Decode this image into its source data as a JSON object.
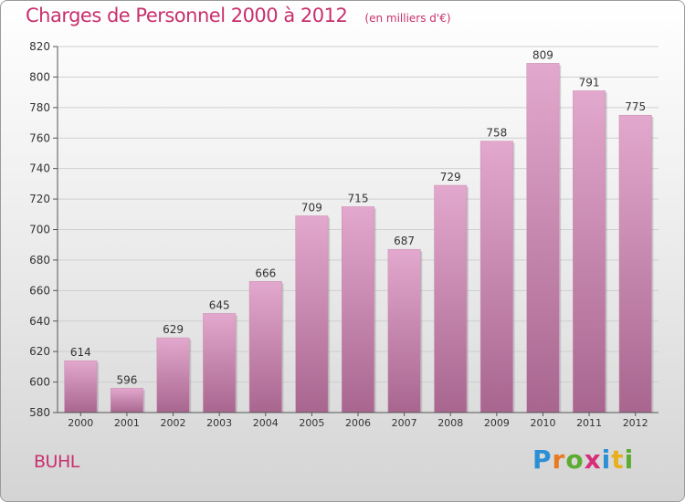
{
  "title": "Charges de Personnel 2000 à 2012",
  "subtitle": "(en milliers d'€)",
  "commune": "BUHL",
  "brand": {
    "letters": [
      "P",
      "r",
      "o",
      "x",
      "i",
      "t",
      "i"
    ],
    "colors": [
      "#2c8fd6",
      "#e87a1f",
      "#5cab32",
      "#d62f7a",
      "#2c8fd6",
      "#e8b01f",
      "#5cab32"
    ]
  },
  "colors": {
    "accent": "#c8306d",
    "bar_top": "#e3a8cd",
    "bar_bottom": "#a8668f"
  },
  "chart_data": {
    "type": "bar",
    "categories": [
      "2000",
      "2001",
      "2002",
      "2003",
      "2004",
      "2005",
      "2006",
      "2007",
      "2008",
      "2009",
      "2010",
      "2011",
      "2012"
    ],
    "values": [
      614,
      596,
      629,
      645,
      666,
      709,
      715,
      687,
      729,
      758,
      809,
      791,
      775
    ],
    "title": "Charges de Personnel 2000 à 2012",
    "xlabel": "",
    "ylabel": "",
    "ylim": [
      580,
      820
    ],
    "yticks": [
      580,
      600,
      620,
      640,
      660,
      680,
      700,
      720,
      740,
      760,
      780,
      800,
      820
    ],
    "grid": true
  }
}
